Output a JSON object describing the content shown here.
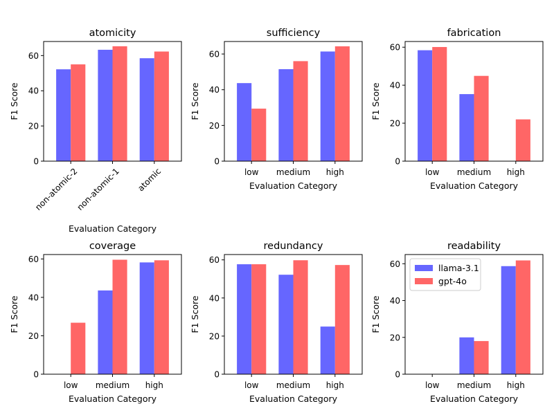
{
  "chart_data": [
    {
      "type": "bar",
      "title": "atomicity",
      "xlabel": "Evaluation Category",
      "ylabel": "F1 Score",
      "categories": [
        "non-atomic-2",
        "non-atomic-1",
        "atomic"
      ],
      "rotate_xticks": true,
      "ylim": [
        0,
        68
      ],
      "yticks": [
        0,
        20,
        40,
        60
      ],
      "series": [
        {
          "name": "llama-3.1",
          "values": [
            52.2,
            63.3,
            58.5
          ]
        },
        {
          "name": "gpt-4o",
          "values": [
            55.0,
            65.3,
            62.3
          ]
        }
      ]
    },
    {
      "type": "bar",
      "title": "sufficiency",
      "xlabel": "Evaluation Category",
      "ylabel": "F1 Score",
      "categories": [
        "low",
        "medium",
        "high"
      ],
      "ylim": [
        0,
        67
      ],
      "yticks": [
        0,
        20,
        40,
        60
      ],
      "series": [
        {
          "name": "llama-3.1",
          "values": [
            43.7,
            51.5,
            61.4
          ]
        },
        {
          "name": "gpt-4o",
          "values": [
            29.4,
            56.0,
            64.3
          ]
        }
      ]
    },
    {
      "type": "bar",
      "title": "fabrication",
      "xlabel": "Evaluation Category",
      "ylabel": "F1 Score",
      "categories": [
        "low",
        "medium",
        "high"
      ],
      "ylim": [
        0,
        63
      ],
      "yticks": [
        0,
        20,
        40,
        60
      ],
      "series": [
        {
          "name": "llama-3.1",
          "values": [
            58.4,
            35.3,
            0
          ]
        },
        {
          "name": "gpt-4o",
          "values": [
            60.1,
            44.9,
            22.0
          ]
        }
      ]
    },
    {
      "type": "bar",
      "title": "coverage",
      "xlabel": "Evaluation Category",
      "ylabel": "F1 Score",
      "categories": [
        "low",
        "medium",
        "high"
      ],
      "ylim": [
        0,
        62.3
      ],
      "yticks": [
        0,
        20,
        40,
        60
      ],
      "series": [
        {
          "name": "llama-3.1",
          "values": [
            0,
            43.6,
            58.2
          ]
        },
        {
          "name": "gpt-4o",
          "values": [
            26.8,
            59.6,
            59.3
          ]
        }
      ]
    },
    {
      "type": "bar",
      "title": "redundancy",
      "xlabel": "Evaluation Category",
      "ylabel": "F1 Score",
      "categories": [
        "low",
        "medium",
        "high"
      ],
      "ylim": [
        0,
        62.8
      ],
      "yticks": [
        0,
        20,
        40,
        60
      ],
      "series": [
        {
          "name": "llama-3.1",
          "values": [
            57.7,
            52.2,
            25.0
          ]
        },
        {
          "name": "gpt-4o",
          "values": [
            57.7,
            59.8,
            57.3
          ]
        }
      ]
    },
    {
      "type": "bar",
      "title": "readability",
      "xlabel": "Evaluation Category",
      "ylabel": "F1 Score",
      "categories": [
        "low",
        "medium",
        "high"
      ],
      "ylim": [
        0,
        65
      ],
      "yticks": [
        0,
        20,
        40,
        60
      ],
      "legend": "top-left",
      "series": [
        {
          "name": "llama-3.1",
          "values": [
            0,
            20.0,
            58.7
          ]
        },
        {
          "name": "gpt-4o",
          "values": [
            0,
            18.0,
            61.8
          ]
        }
      ]
    }
  ],
  "colors": {
    "llama-3.1": "#6666ff",
    "gpt-4o": "#ff6666"
  }
}
